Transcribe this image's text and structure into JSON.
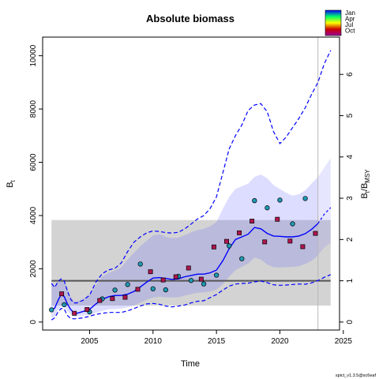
{
  "chart_data": {
    "type": "line",
    "title": "Absolute biomass",
    "xlabel": "Time",
    "ylabel": "B",
    "ylabel_sub": "t",
    "y2label": "B",
    "y2label_sub": "t",
    "y2label_mid": "/B",
    "y2label_sub2": "MSY",
    "xlim": [
      2001.3,
      2024.7
    ],
    "ylim": [
      -300,
      10700
    ],
    "x_ticks": [
      "2005",
      "2010",
      "2015",
      "2020",
      "2025"
    ],
    "y_ticks": [
      "0",
      "2000",
      "4000",
      "6000",
      "8000",
      "10000"
    ],
    "y2_ticks": [
      "0",
      "1",
      "2",
      "3",
      "4",
      "5",
      "6"
    ],
    "bmsy": 1550,
    "bmsy_ci": [
      620,
      3830
    ],
    "bmsy_ci_x": [
      2002,
      2024
    ],
    "forecast_start": 2023,
    "grid": false,
    "legend_position": "top-right",
    "legend": [
      "Jan",
      "Apr",
      "Jul",
      "Oct"
    ],
    "legend_colors": [
      "#0000ff",
      "#00ff66",
      "#ffff00",
      "#cc0000",
      "#990099"
    ],
    "footer": "spict_v1.3.5@sc6eaf",
    "series": [
      {
        "role": "estimate",
        "color": "#0000ff",
        "x": [
          2002,
          2002.25,
          2002.5,
          2002.75,
          2003,
          2003.25,
          2003.5,
          2003.75,
          2004,
          2004.5,
          2005,
          2005.5,
          2006,
          2006.5,
          2007,
          2007.5,
          2008,
          2008.5,
          2009,
          2009.5,
          2010,
          2010.5,
          2011,
          2011.5,
          2012,
          2012.5,
          2013,
          2013.5,
          2014,
          2014.5,
          2015,
          2015.5,
          2016,
          2016.5,
          2017,
          2017.5,
          2018,
          2018.5,
          2019,
          2019.5,
          2020,
          2020.5,
          2021,
          2021.5,
          2022,
          2022.5,
          2023
        ],
        "y": [
          460,
          520,
          800,
          1030,
          960,
          680,
          480,
          350,
          330,
          400,
          480,
          680,
          850,
          950,
          1000,
          1000,
          1050,
          1150,
          1320,
          1500,
          1650,
          1670,
          1640,
          1600,
          1620,
          1700,
          1750,
          1800,
          1800,
          1850,
          1950,
          2300,
          2750,
          3100,
          3200,
          3300,
          3550,
          3500,
          3330,
          3230,
          3220,
          3200,
          3200,
          3230,
          3320,
          3480,
          3700
        ]
      },
      {
        "role": "ci_upper",
        "color": "#0000ff",
        "x": [
          2002,
          2002.25,
          2002.5,
          2002.75,
          2003,
          2003.25,
          2003.5,
          2003.75,
          2004,
          2004.5,
          2005,
          2005.5,
          2006,
          2006.5,
          2007,
          2007.5,
          2008,
          2008.5,
          2009,
          2009.5,
          2010,
          2010.5,
          2011,
          2011.5,
          2012,
          2012.5,
          2013,
          2013.5,
          2014,
          2014.5,
          2015,
          2015.5,
          2016,
          2016.5,
          2017,
          2017.5,
          2018,
          2018.5,
          2019,
          2019.5,
          2020,
          2020.5,
          2021,
          2021.5,
          2022,
          2022.5,
          2023
        ],
        "y": [
          1500,
          1350,
          1480,
          1560,
          1530,
          1280,
          960,
          790,
          780,
          870,
          1010,
          1380,
          1700,
          1850,
          1930,
          2050,
          2350,
          2600,
          2850,
          3050,
          3250,
          3300,
          3200,
          3150,
          3170,
          3260,
          3370,
          3450,
          3500,
          3600,
          3750,
          4250,
          4700,
          5000,
          5100,
          5200,
          5450,
          5540,
          5400,
          5140,
          5000,
          4850,
          4750,
          4800,
          4950,
          5200,
          5450
        ]
      },
      {
        "role": "ci_lower",
        "color": "#0000ff",
        "x": [
          2002,
          2002.25,
          2002.5,
          2002.75,
          2003,
          2003.25,
          2003.5,
          2003.75,
          2004,
          2004.5,
          2005,
          2005.5,
          2006,
          2006.5,
          2007,
          2007.5,
          2008,
          2008.5,
          2009,
          2009.5,
          2010,
          2010.5,
          2011,
          2011.5,
          2012,
          2012.5,
          2013,
          2013.5,
          2014,
          2014.5,
          2015,
          2015.5,
          2016,
          2016.5,
          2017,
          2017.5,
          2018,
          2018.5,
          2019,
          2019.5,
          2020,
          2020.5,
          2021,
          2021.5,
          2022,
          2022.5,
          2023
        ],
        "y": [
          150,
          210,
          450,
          580,
          620,
          420,
          290,
          210,
          210,
          250,
          270,
          350,
          420,
          480,
          490,
          510,
          550,
          620,
          730,
          840,
          920,
          950,
          930,
          920,
          930,
          1000,
          1050,
          1100,
          1110,
          1150,
          1220,
          1420,
          1700,
          1950,
          2080,
          2200,
          2420,
          2350,
          2160,
          2060,
          2050,
          2060,
          2070,
          2100,
          2180,
          2300,
          2500
        ]
      },
      {
        "role": "pi_upper",
        "color": "#0000ff",
        "x": [
          2002,
          2002.25,
          2002.5,
          2002.75,
          2003,
          2003.25,
          2003.5,
          2003.75,
          2004,
          2004.5,
          2005,
          2005.5,
          2006,
          2006.5,
          2007,
          2007.5,
          2008,
          2008.5,
          2009,
          2009.5,
          2010,
          2010.5,
          2011,
          2011.5,
          2012,
          2012.5,
          2013,
          2013.5,
          2014,
          2014.5,
          2015,
          2015.5,
          2016,
          2016.5,
          2017,
          2017.5,
          2018,
          2018.5,
          2019,
          2019.5,
          2020,
          2020.5,
          2021,
          2021.5,
          2022,
          2022.5,
          2023,
          2023.5,
          2024
        ],
        "y": [
          1450,
          1300,
          1510,
          1620,
          1550,
          1170,
          860,
          720,
          720,
          820,
          1010,
          1500,
          1820,
          1960,
          2020,
          2220,
          2650,
          3000,
          3200,
          3350,
          3420,
          3400,
          3360,
          3340,
          3370,
          3500,
          3680,
          3870,
          4000,
          4260,
          4700,
          5600,
          6500,
          7000,
          7400,
          7950,
          8150,
          8200,
          7900,
          7150,
          6700,
          6950,
          7300,
          7650,
          8050,
          8550,
          9000,
          9700,
          10200
        ]
      },
      {
        "role": "pi_lower",
        "color": "#0000ff",
        "x": [
          2002,
          2002.25,
          2002.5,
          2002.75,
          2003,
          2003.25,
          2003.5,
          2003.75,
          2004,
          2004.5,
          2005,
          2005.5,
          2006,
          2006.5,
          2007,
          2007.5,
          2008,
          2008.5,
          2009,
          2009.5,
          2010,
          2010.5,
          2011,
          2011.5,
          2012,
          2012.5,
          2013,
          2013.5,
          2014,
          2014.5,
          2015,
          2015.5,
          2016,
          2016.5,
          2017,
          2017.5,
          2018,
          2018.5,
          2019,
          2019.5,
          2020,
          2020.5,
          2021,
          2021.5,
          2022,
          2022.5,
          2023,
          2023.5,
          2024
        ],
        "y": [
          80,
          160,
          370,
          510,
          490,
          250,
          140,
          120,
          130,
          160,
          220,
          290,
          330,
          360,
          360,
          360,
          420,
          510,
          600,
          680,
          700,
          670,
          600,
          570,
          600,
          640,
          720,
          780,
          800,
          920,
          1030,
          1200,
          1350,
          1430,
          1450,
          1460,
          1510,
          1540,
          1480,
          1400,
          1380,
          1390,
          1410,
          1430,
          1420,
          1470,
          1560,
          1680,
          1780
        ]
      },
      {
        "role": "forecast",
        "color": "#0000ff",
        "x": [
          2023,
          2023.5,
          2024
        ],
        "y": [
          3700,
          4050,
          4300
        ]
      },
      {
        "role": "forecast_ci_upper",
        "color": "#0000ff",
        "x": [
          2023,
          2023.5,
          2024
        ],
        "y": [
          5450,
          5800,
          6150
        ]
      },
      {
        "role": "forecast_ci_lower",
        "color": "#0000ff",
        "x": [
          2023,
          2023.5,
          2024
        ],
        "y": [
          2500,
          2800,
          2980
        ]
      }
    ],
    "points_q1": [
      {
        "x": 2002.0,
        "y": 460
      },
      {
        "x": 2003.0,
        "y": 650
      },
      {
        "x": 2005.0,
        "y": 380
      },
      {
        "x": 2006.0,
        "y": 870
      },
      {
        "x": 2007.0,
        "y": 1200
      },
      {
        "x": 2008.0,
        "y": 1410
      },
      {
        "x": 2009.0,
        "y": 2180
      },
      {
        "x": 2010.0,
        "y": 1250
      },
      {
        "x": 2011.0,
        "y": 1210
      },
      {
        "x": 2012.0,
        "y": 1720
      },
      {
        "x": 2013.0,
        "y": 1560
      },
      {
        "x": 2014.0,
        "y": 1430
      },
      {
        "x": 2015.0,
        "y": 1760
      },
      {
        "x": 2016.0,
        "y": 2860
      },
      {
        "x": 2017.0,
        "y": 2380
      },
      {
        "x": 2018.0,
        "y": 4560
      },
      {
        "x": 2019.0,
        "y": 4290
      },
      {
        "x": 2020.0,
        "y": 4580
      },
      {
        "x": 2021.0,
        "y": 3690
      },
      {
        "x": 2022.0,
        "y": 4640
      }
    ],
    "points_q4": [
      {
        "x": 2002.8,
        "y": 1060
      },
      {
        "x": 2003.8,
        "y": 330
      },
      {
        "x": 2004.8,
        "y": 470
      },
      {
        "x": 2005.8,
        "y": 810
      },
      {
        "x": 2006.8,
        "y": 880
      },
      {
        "x": 2007.8,
        "y": 930
      },
      {
        "x": 2008.8,
        "y": 1230
      },
      {
        "x": 2009.8,
        "y": 1890
      },
      {
        "x": 2010.8,
        "y": 1580
      },
      {
        "x": 2011.8,
        "y": 1700
      },
      {
        "x": 2012.8,
        "y": 2030
      },
      {
        "x": 2013.8,
        "y": 1610
      },
      {
        "x": 2014.8,
        "y": 2820
      },
      {
        "x": 2015.8,
        "y": 3030
      },
      {
        "x": 2016.8,
        "y": 3350
      },
      {
        "x": 2017.8,
        "y": 3790
      },
      {
        "x": 2018.8,
        "y": 3010
      },
      {
        "x": 2019.8,
        "y": 3860
      },
      {
        "x": 2020.8,
        "y": 3040
      },
      {
        "x": 2021.8,
        "y": 2830
      },
      {
        "x": 2022.8,
        "y": 3330
      }
    ]
  }
}
